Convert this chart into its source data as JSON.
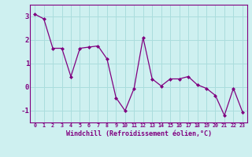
{
  "x": [
    0,
    1,
    2,
    3,
    4,
    5,
    6,
    7,
    8,
    9,
    10,
    11,
    12,
    13,
    14,
    15,
    16,
    17,
    18,
    19,
    20,
    21,
    22,
    23
  ],
  "y": [
    3.1,
    2.9,
    1.65,
    1.65,
    0.45,
    1.65,
    1.7,
    1.75,
    1.2,
    -0.45,
    -1.0,
    -0.05,
    2.1,
    0.35,
    0.05,
    0.35,
    0.35,
    0.45,
    0.1,
    -0.05,
    -0.35,
    -1.2,
    -0.05,
    -1.05
  ],
  "line_color": "#800080",
  "marker": "D",
  "marker_size": 2.0,
  "bg_color": "#cef0f0",
  "grid_color": "#aadddd",
  "xlabel": "Windchill (Refroidissement éolien,°C)",
  "xlabel_color": "#800080",
  "tick_color": "#800080",
  "xlim": [
    -0.5,
    23.5
  ],
  "ylim": [
    -1.5,
    3.5
  ],
  "yticks": [
    -1,
    0,
    1,
    2,
    3
  ],
  "xticks": [
    0,
    1,
    2,
    3,
    4,
    5,
    6,
    7,
    8,
    9,
    10,
    11,
    12,
    13,
    14,
    15,
    16,
    17,
    18,
    19,
    20,
    21,
    22,
    23
  ],
  "xtick_labels": [
    "0",
    "1",
    "2",
    "3",
    "4",
    "5",
    "6",
    "7",
    "8",
    "9",
    "10",
    "11",
    "12",
    "13",
    "14",
    "15",
    "16",
    "17",
    "18",
    "19",
    "20",
    "21",
    "22",
    "23"
  ]
}
